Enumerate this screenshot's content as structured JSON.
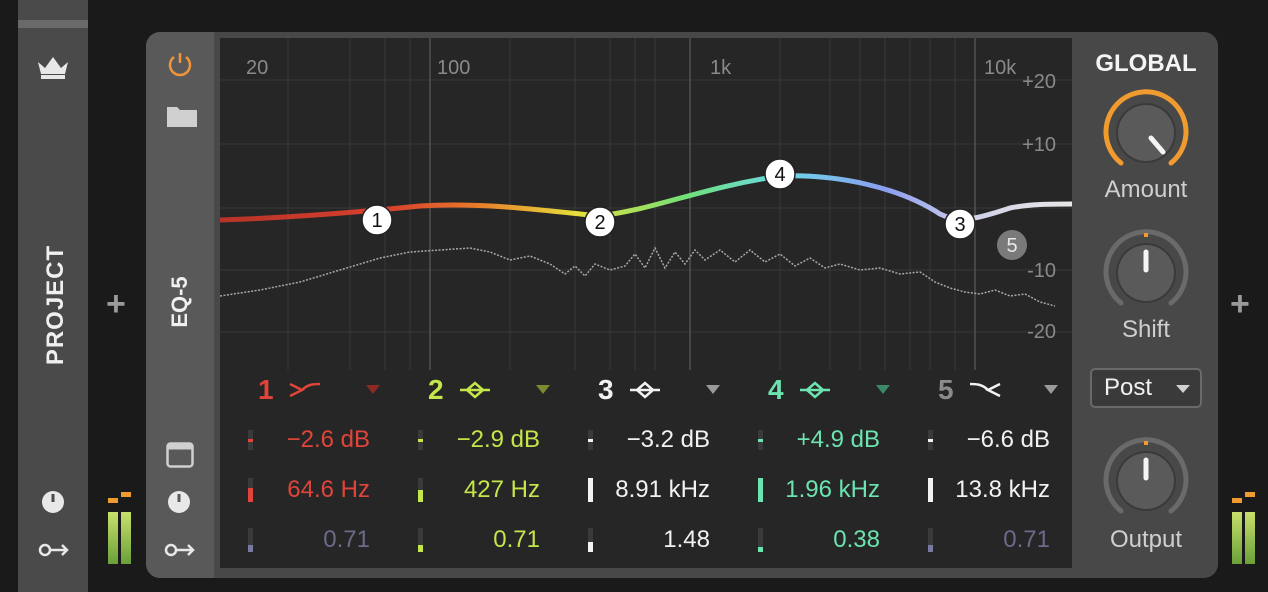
{
  "project": {
    "label": "PROJECT"
  },
  "device": {
    "name": "EQ-5",
    "colors": {
      "power": "#f0963a"
    }
  },
  "graph": {
    "freq_labels": [
      "20",
      "100",
      "1k",
      "10k"
    ],
    "db_labels": [
      "+20",
      "+10",
      "-10",
      "-20"
    ]
  },
  "bands": [
    {
      "number": "1",
      "gain": "−2.6 dB",
      "freq": "64.6 Hz",
      "q": "0.71",
      "color": "#e0443a",
      "q_color": "#7a7aa0",
      "shape": "low-cut-icon"
    },
    {
      "number": "2",
      "gain": "−2.9 dB",
      "freq": "427 Hz",
      "q": "0.71",
      "color": "#c4e64a",
      "q_color": "#c4e64a",
      "shape": "bell-icon"
    },
    {
      "number": "3",
      "gain": "−3.2 dB",
      "freq": "8.91 kHz",
      "q": "1.48",
      "color": "#f2f2f2",
      "q_color": "#f2f2f2",
      "shape": "bell-icon"
    },
    {
      "number": "4",
      "gain": "+4.9 dB",
      "freq": "1.96 kHz",
      "q": "0.38",
      "color": "#6ce4b0",
      "q_color": "#6ce4b0",
      "shape": "bell-icon"
    },
    {
      "number": "5",
      "gain": "−6.6 dB",
      "freq": "13.8 kHz",
      "q": "0.71",
      "color": "#8a8a8a",
      "q_color": "#7a7aa0",
      "shape": "high-cut-icon"
    }
  ],
  "global": {
    "title": "GLOBAL",
    "amount_label": "Amount",
    "shift_label": "Shift",
    "mode_value": "Post",
    "output_label": "Output"
  }
}
